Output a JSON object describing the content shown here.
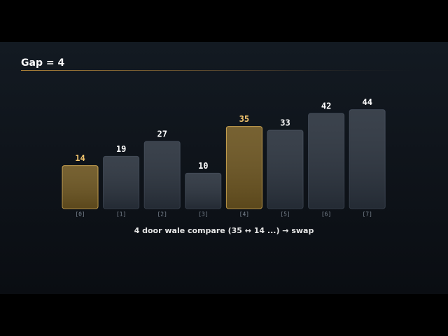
{
  "chart_data": {
    "type": "bar",
    "title": "Gap = 4",
    "categories": [
      "[0]",
      "[1]",
      "[2]",
      "[3]",
      "[4]",
      "[5]",
      "[6]",
      "[7]"
    ],
    "values": [
      14,
      19,
      27,
      10,
      35,
      33,
      42,
      44
    ],
    "color": "#2a323d",
    "colors": [
      "#6b5420",
      "#2a323d",
      "#2a323d",
      "#2a323d",
      "#6b5420",
      "#2a323d",
      "#2a323d",
      "#2a323d"
    ],
    "caption": "4 door wale compare (35 ↔ 14 ...) → swap"
  }
}
